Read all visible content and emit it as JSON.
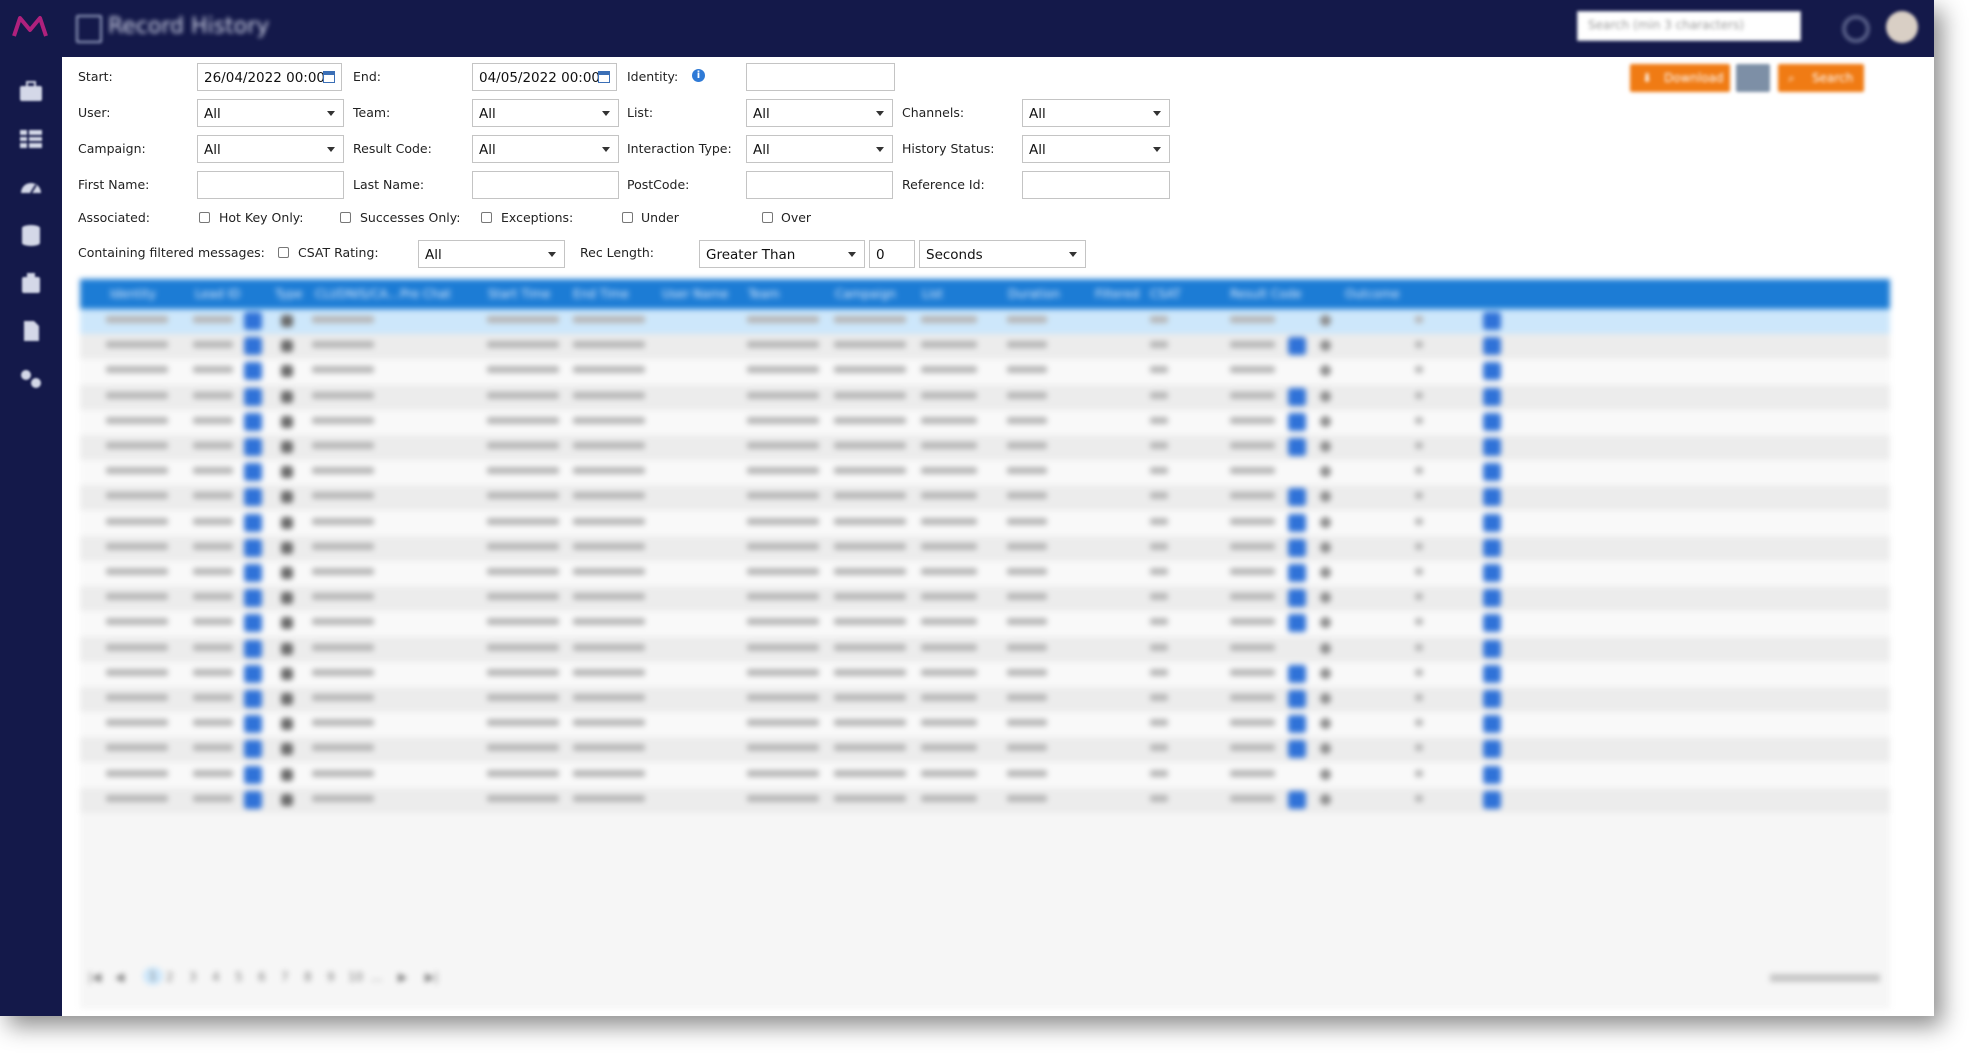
{
  "topbar": {
    "title": "Record History",
    "search_placeholder": "Search (min 3 characters)",
    "logo_color": "#b0217d",
    "nav_color": "#14194a"
  },
  "toolbar": {
    "download_label": "Download",
    "search_label": "Search",
    "accent_color": "#f07b14"
  },
  "filters": {
    "start_label": "Start:",
    "start_value": "26/04/2022 00:00",
    "end_label": "End:",
    "end_value": "04/05/2022 00:00",
    "identity_label": "Identity:",
    "identity_value": "",
    "user_label": "User:",
    "user_value": "All",
    "team_label": "Team:",
    "team_value": "All",
    "list_label": "List:",
    "list_value": "All",
    "channels_label": "Channels:",
    "channels_value": "All",
    "campaign_label": "Campaign:",
    "campaign_value": "All",
    "result_code_label": "Result Code:",
    "result_code_value": "All",
    "interaction_type_label": "Interaction Type:",
    "interaction_type_value": "All",
    "history_status_label": "History Status:",
    "history_status_value": "All",
    "first_name_label": "First Name:",
    "last_name_label": "Last Name:",
    "postcode_label": "PostCode:",
    "reference_id_label": "Reference Id:",
    "associated_label": "Associated:",
    "hot_key_only_label": "Hot Key Only:",
    "successes_only_label": "Successes Only:",
    "exceptions_label": "Exceptions:",
    "under_label": "Under",
    "over_label": "Over",
    "containing_filtered_label": "Containing filtered messages:",
    "csat_rating_label": "CSAT Rating:",
    "csat_rating_value": "All",
    "rec_length_label": "Rec Length:",
    "rec_length_comparator": "Greater Than",
    "rec_length_value": "0",
    "rec_length_unit": "Seconds"
  },
  "grid": {
    "header_color": "#1c7cd5",
    "columns": [
      "Identity",
      "Lead ID",
      "Type",
      "CLI/DNIS/CA...",
      "Pre Chat",
      "Start Time",
      "End Time",
      "User Name",
      "Team",
      "Campaign",
      "List",
      "Duration",
      "Filtered",
      "CSAT",
      "Result Code",
      "Outcome"
    ]
  }
}
